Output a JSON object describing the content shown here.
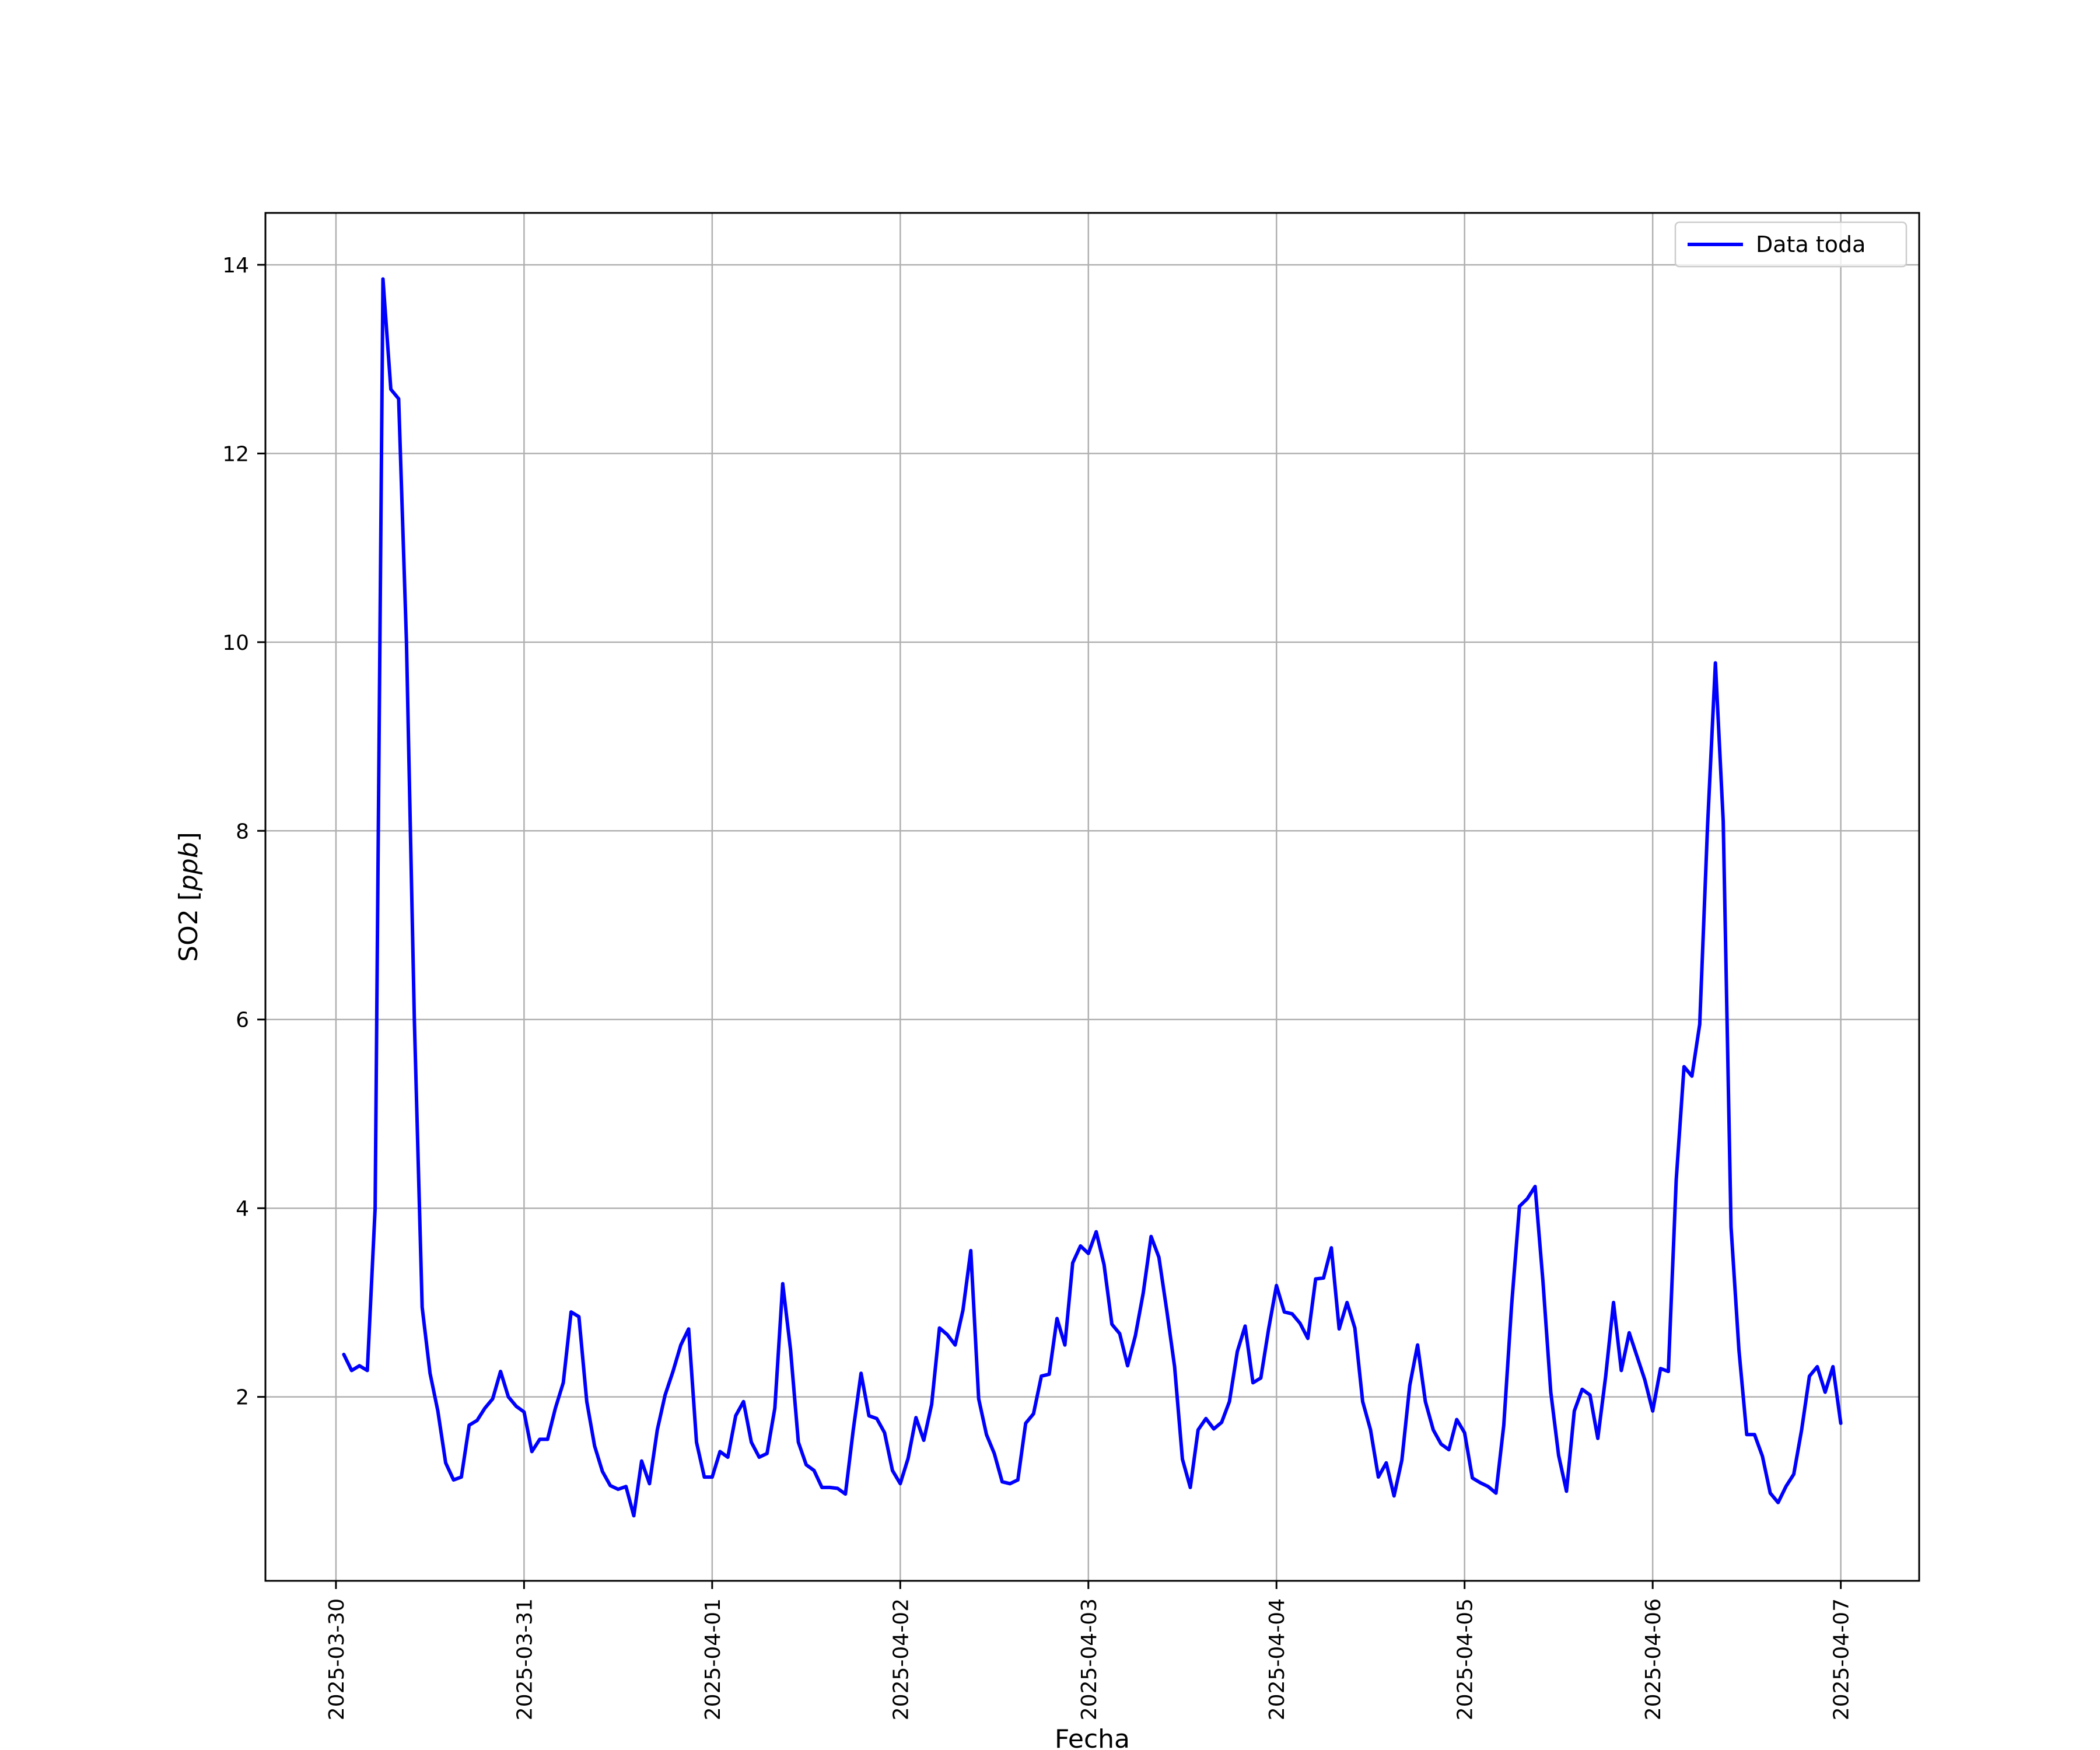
{
  "chart_data": {
    "type": "line",
    "title": "",
    "xlabel": "Fecha",
    "ylabel": "SO2 [ppb]",
    "ylabel_parts": {
      "main": "SO2 [",
      "unit": "ppb",
      "close": "]"
    },
    "x_ticks": [
      "2025-03-30",
      "2025-03-31",
      "2025-04-01",
      "2025-04-02",
      "2025-04-03",
      "2025-04-04",
      "2025-04-05",
      "2025-04-06",
      "2025-04-07"
    ],
    "y_ticks": [
      2,
      4,
      6,
      8,
      10,
      12,
      14
    ],
    "xlim": [
      "2025-03-29T15:00",
      "2025-04-07T10:00"
    ],
    "ylim": [
      0.05,
      14.55
    ],
    "grid": true,
    "legend_position": "top-right",
    "series": [
      {
        "name": "Data toda",
        "color": "#0000ff",
        "x": [
          "2025-03-30T01:00",
          "2025-03-30T02:00",
          "2025-03-30T03:00",
          "2025-03-30T04:00",
          "2025-03-30T05:00",
          "2025-03-30T06:00",
          "2025-03-30T07:00",
          "2025-03-30T08:00",
          "2025-03-30T09:00",
          "2025-03-30T10:00",
          "2025-03-30T11:00",
          "2025-03-30T12:00",
          "2025-03-30T13:00",
          "2025-03-30T14:00",
          "2025-03-30T15:00",
          "2025-03-30T16:00",
          "2025-03-30T17:00",
          "2025-03-30T18:00",
          "2025-03-30T19:00",
          "2025-03-30T20:00",
          "2025-03-30T21:00",
          "2025-03-30T22:00",
          "2025-03-30T23:00",
          "2025-03-31T00:00",
          "2025-03-31T01:00",
          "2025-03-31T02:00",
          "2025-03-31T03:00",
          "2025-03-31T04:00",
          "2025-03-31T05:00",
          "2025-03-31T06:00",
          "2025-03-31T07:00",
          "2025-03-31T08:00",
          "2025-03-31T09:00",
          "2025-03-31T10:00",
          "2025-03-31T11:00",
          "2025-03-31T12:00",
          "2025-03-31T13:00",
          "2025-03-31T14:00",
          "2025-03-31T15:00",
          "2025-03-31T16:00",
          "2025-03-31T17:00",
          "2025-03-31T18:00",
          "2025-03-31T19:00",
          "2025-03-31T20:00",
          "2025-03-31T21:00",
          "2025-03-31T22:00",
          "2025-03-31T23:00",
          "2025-04-01T00:00",
          "2025-04-01T01:00",
          "2025-04-01T02:00",
          "2025-04-01T03:00",
          "2025-04-01T04:00",
          "2025-04-01T05:00",
          "2025-04-01T06:00",
          "2025-04-01T07:00",
          "2025-04-01T08:00",
          "2025-04-01T09:00",
          "2025-04-01T10:00",
          "2025-04-01T11:00",
          "2025-04-01T12:00",
          "2025-04-01T13:00",
          "2025-04-01T14:00",
          "2025-04-01T15:00",
          "2025-04-01T16:00",
          "2025-04-01T17:00",
          "2025-04-01T18:00",
          "2025-04-01T19:00",
          "2025-04-01T20:00",
          "2025-04-01T21:00",
          "2025-04-01T22:00",
          "2025-04-01T23:00",
          "2025-04-02T00:00",
          "2025-04-02T01:00",
          "2025-04-02T02:00",
          "2025-04-02T03:00",
          "2025-04-02T04:00",
          "2025-04-02T05:00",
          "2025-04-02T06:00",
          "2025-04-02T07:00",
          "2025-04-02T08:00",
          "2025-04-02T09:00",
          "2025-04-02T10:00",
          "2025-04-02T11:00",
          "2025-04-02T12:00",
          "2025-04-02T13:00",
          "2025-04-02T14:00",
          "2025-04-02T15:00",
          "2025-04-02T16:00",
          "2025-04-02T17:00",
          "2025-04-02T18:00",
          "2025-04-02T19:00",
          "2025-04-02T20:00",
          "2025-04-02T21:00",
          "2025-04-02T22:00",
          "2025-04-02T23:00",
          "2025-04-03T00:00",
          "2025-04-03T01:00",
          "2025-04-03T02:00",
          "2025-04-03T03:00",
          "2025-04-03T04:00",
          "2025-04-03T05:00",
          "2025-04-03T06:00",
          "2025-04-03T07:00",
          "2025-04-03T08:00",
          "2025-04-03T09:00",
          "2025-04-03T10:00",
          "2025-04-03T11:00",
          "2025-04-03T12:00",
          "2025-04-03T13:00",
          "2025-04-03T14:00",
          "2025-04-03T15:00",
          "2025-04-03T16:00",
          "2025-04-03T17:00",
          "2025-04-03T18:00",
          "2025-04-03T19:00",
          "2025-04-03T20:00",
          "2025-04-03T21:00",
          "2025-04-03T22:00",
          "2025-04-03T23:00",
          "2025-04-04T00:00",
          "2025-04-04T01:00",
          "2025-04-04T02:00",
          "2025-04-04T03:00",
          "2025-04-04T04:00",
          "2025-04-04T05:00",
          "2025-04-04T06:00",
          "2025-04-04T07:00",
          "2025-04-04T08:00",
          "2025-04-04T09:00",
          "2025-04-04T10:00",
          "2025-04-04T11:00",
          "2025-04-04T12:00",
          "2025-04-04T13:00",
          "2025-04-04T14:00",
          "2025-04-04T15:00",
          "2025-04-04T16:00",
          "2025-04-04T17:00",
          "2025-04-04T18:00",
          "2025-04-04T19:00",
          "2025-04-04T20:00",
          "2025-04-04T21:00",
          "2025-04-04T22:00",
          "2025-04-04T23:00",
          "2025-04-05T00:00",
          "2025-04-05T01:00",
          "2025-04-05T02:00",
          "2025-04-05T03:00",
          "2025-04-05T04:00",
          "2025-04-05T05:00",
          "2025-04-05T06:00",
          "2025-04-05T07:00",
          "2025-04-05T08:00",
          "2025-04-05T09:00",
          "2025-04-05T10:00",
          "2025-04-05T11:00",
          "2025-04-05T12:00",
          "2025-04-05T13:00",
          "2025-04-05T14:00",
          "2025-04-05T15:00",
          "2025-04-05T16:00",
          "2025-04-05T17:00",
          "2025-04-05T18:00",
          "2025-04-05T19:00",
          "2025-04-05T20:00",
          "2025-04-05T21:00",
          "2025-04-05T22:00",
          "2025-04-05T23:00",
          "2025-04-06T00:00",
          "2025-04-06T01:00",
          "2025-04-06T02:00",
          "2025-04-06T03:00",
          "2025-04-06T04:00",
          "2025-04-06T05:00",
          "2025-04-06T06:00",
          "2025-04-06T07:00",
          "2025-04-06T08:00",
          "2025-04-06T09:00",
          "2025-04-06T10:00",
          "2025-04-06T11:00",
          "2025-04-06T12:00",
          "2025-04-06T13:00",
          "2025-04-06T14:00",
          "2025-04-06T15:00",
          "2025-04-06T16:00",
          "2025-04-06T17:00",
          "2025-04-06T18:00",
          "2025-04-06T19:00",
          "2025-04-06T20:00",
          "2025-04-06T21:00",
          "2025-04-06T22:00",
          "2025-04-06T23:00",
          "2025-04-07T00:00"
        ],
        "y": [
          2.45,
          2.28,
          2.33,
          2.28,
          4.0,
          13.85,
          12.68,
          12.58,
          10.0,
          6.0,
          2.95,
          2.25,
          1.85,
          1.3,
          1.12,
          1.15,
          1.7,
          1.75,
          1.88,
          1.98,
          2.27,
          2.0,
          1.9,
          1.84,
          1.42,
          1.55,
          1.55,
          1.88,
          2.15,
          2.9,
          2.85,
          1.95,
          1.48,
          1.21,
          1.06,
          1.02,
          1.05,
          0.74,
          1.32,
          1.08,
          1.65,
          2.02,
          2.27,
          2.55,
          2.72,
          1.52,
          1.15,
          1.15,
          1.42,
          1.36,
          1.8,
          1.95,
          1.52,
          1.36,
          1.4,
          1.88,
          3.2,
          2.5,
          1.52,
          1.28,
          1.22,
          1.04,
          1.04,
          1.03,
          0.97,
          1.65,
          2.25,
          1.8,
          1.77,
          1.62,
          1.22,
          1.08,
          1.35,
          1.78,
          1.54,
          1.92,
          2.73,
          2.66,
          2.55,
          2.92,
          3.55,
          1.98,
          1.6,
          1.4,
          1.1,
          1.08,
          1.12,
          1.72,
          1.82,
          2.22,
          2.24,
          2.83,
          2.55,
          3.42,
          3.6,
          3.52,
          3.75,
          3.4,
          2.77,
          2.67,
          2.33,
          2.65,
          3.1,
          3.7,
          3.48,
          2.92,
          2.32,
          1.34,
          1.04,
          1.65,
          1.77,
          1.66,
          1.73,
          1.95,
          2.48,
          2.75,
          2.15,
          2.2,
          2.72,
          3.18,
          2.9,
          2.88,
          2.78,
          2.62,
          3.25,
          3.26,
          3.58,
          2.72,
          3.0,
          2.73,
          1.95,
          1.65,
          1.15,
          1.3,
          0.95,
          1.33,
          2.12,
          2.55,
          1.95,
          1.65,
          1.5,
          1.44,
          1.76,
          1.62,
          1.14,
          1.09,
          1.05,
          0.98,
          1.7,
          2.97,
          4.02,
          4.1,
          4.23,
          3.22,
          2.05,
          1.38,
          1.0,
          1.85,
          2.08,
          2.02,
          1.56,
          2.22,
          3.0,
          2.28,
          2.68,
          2.43,
          2.18,
          1.85,
          2.3,
          2.27,
          4.3,
          5.5,
          5.4,
          5.95,
          8.05,
          9.78,
          8.1,
          3.8,
          2.5,
          1.6,
          1.6,
          1.37,
          0.98,
          0.88,
          1.05,
          1.18,
          1.65,
          2.22,
          2.32,
          2.05,
          2.32,
          1.72
        ]
      }
    ]
  }
}
